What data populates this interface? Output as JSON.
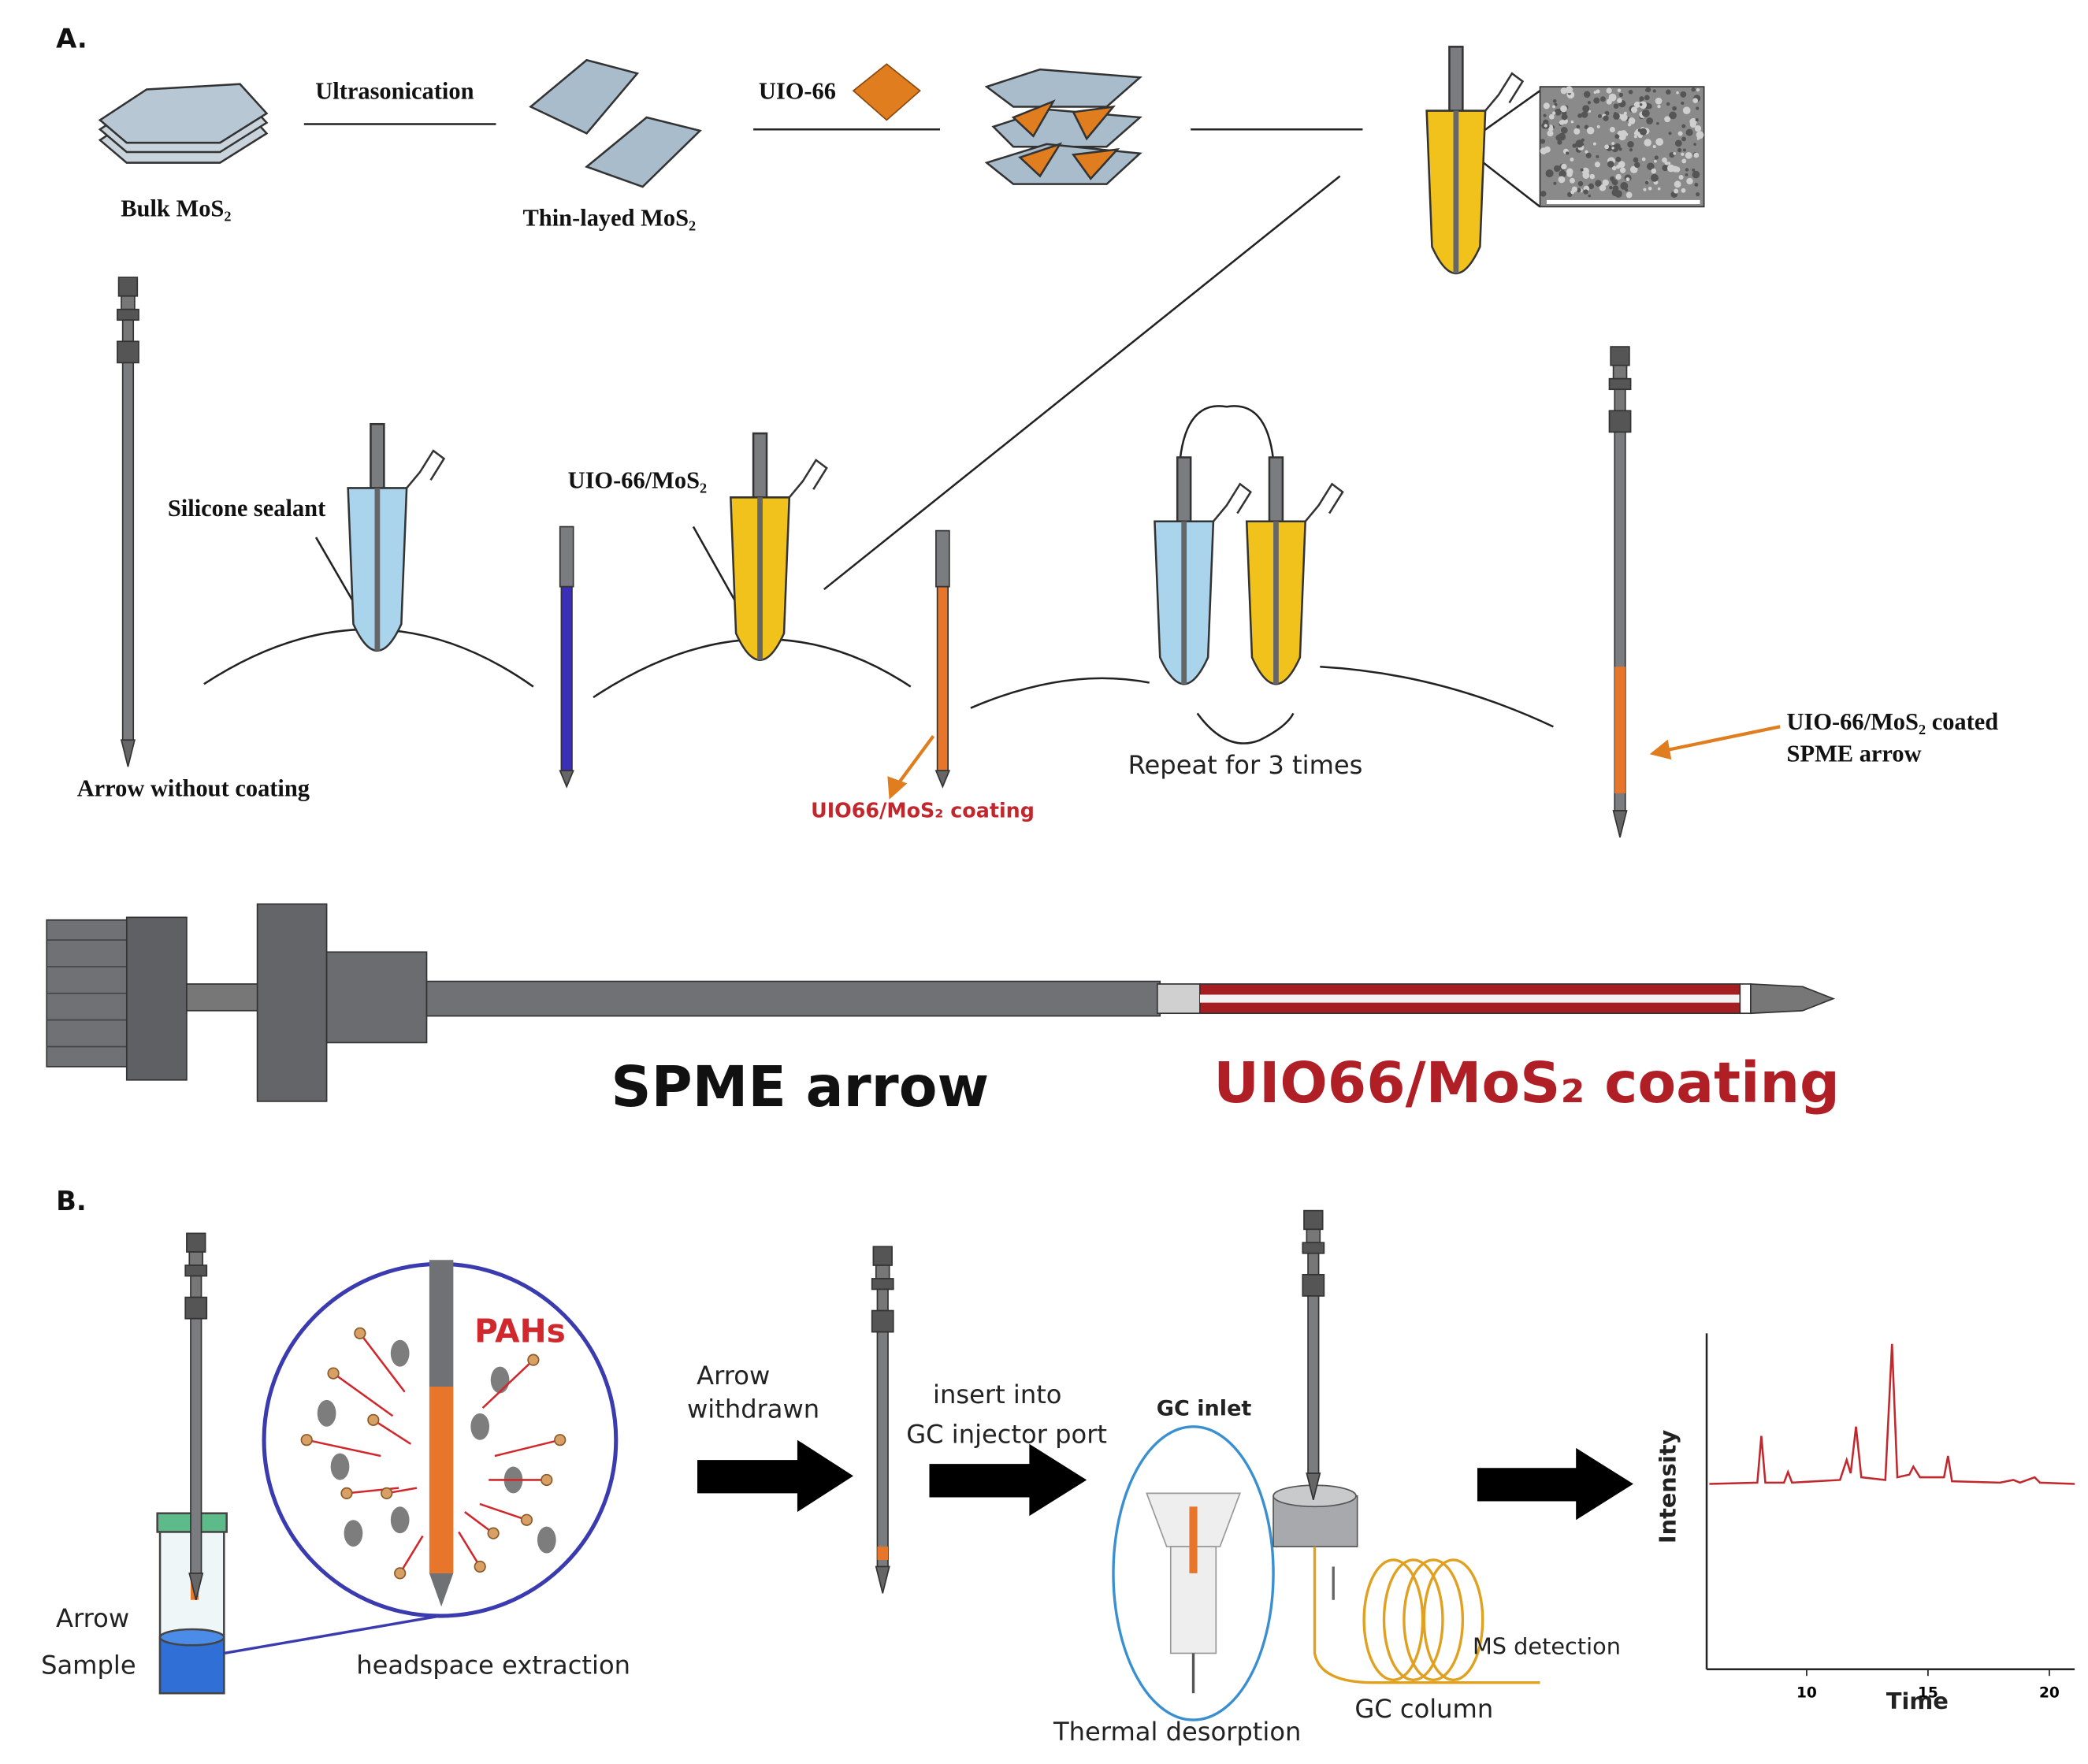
{
  "panel_a": {
    "label": "A.",
    "step_1": "Ultrasonication",
    "step_2": "UIO-66",
    "bulk": "Bulk MoS₂",
    "thin": "Thin-layed MoS₂",
    "silicone": "Silicone sealant",
    "uio_mos2": "UIO-66/MoS₂",
    "arrow_without": "Arrow without coating",
    "coating_label": "UIO66/MoS₂ coating",
    "repeat": "Repeat for 3 times",
    "coated": [
      "UIO-66/MoS₂ coated",
      "SPME arrow"
    ],
    "spme_arrow": "SPME arrow",
    "spme_coating": "UIO66/MoS₂ coating"
  },
  "panel_b": {
    "label": "B.",
    "pahs": "PAHs",
    "arrow": "Arrow",
    "sample": "Sample",
    "headspace": "headspace extraction",
    "withdrawn": [
      "Arrow",
      "withdrawn"
    ],
    "insert": [
      "insert into",
      "GC injector port"
    ],
    "gc_inlet": "GC inlet",
    "thermal": "Thermal desorption",
    "gc_column": "GC column",
    "ms": "MS detection",
    "chromatogram": {
      "y_label": "Intensity",
      "x_label": "Time",
      "xticks": [
        10,
        15,
        20
      ]
    }
  }
}
